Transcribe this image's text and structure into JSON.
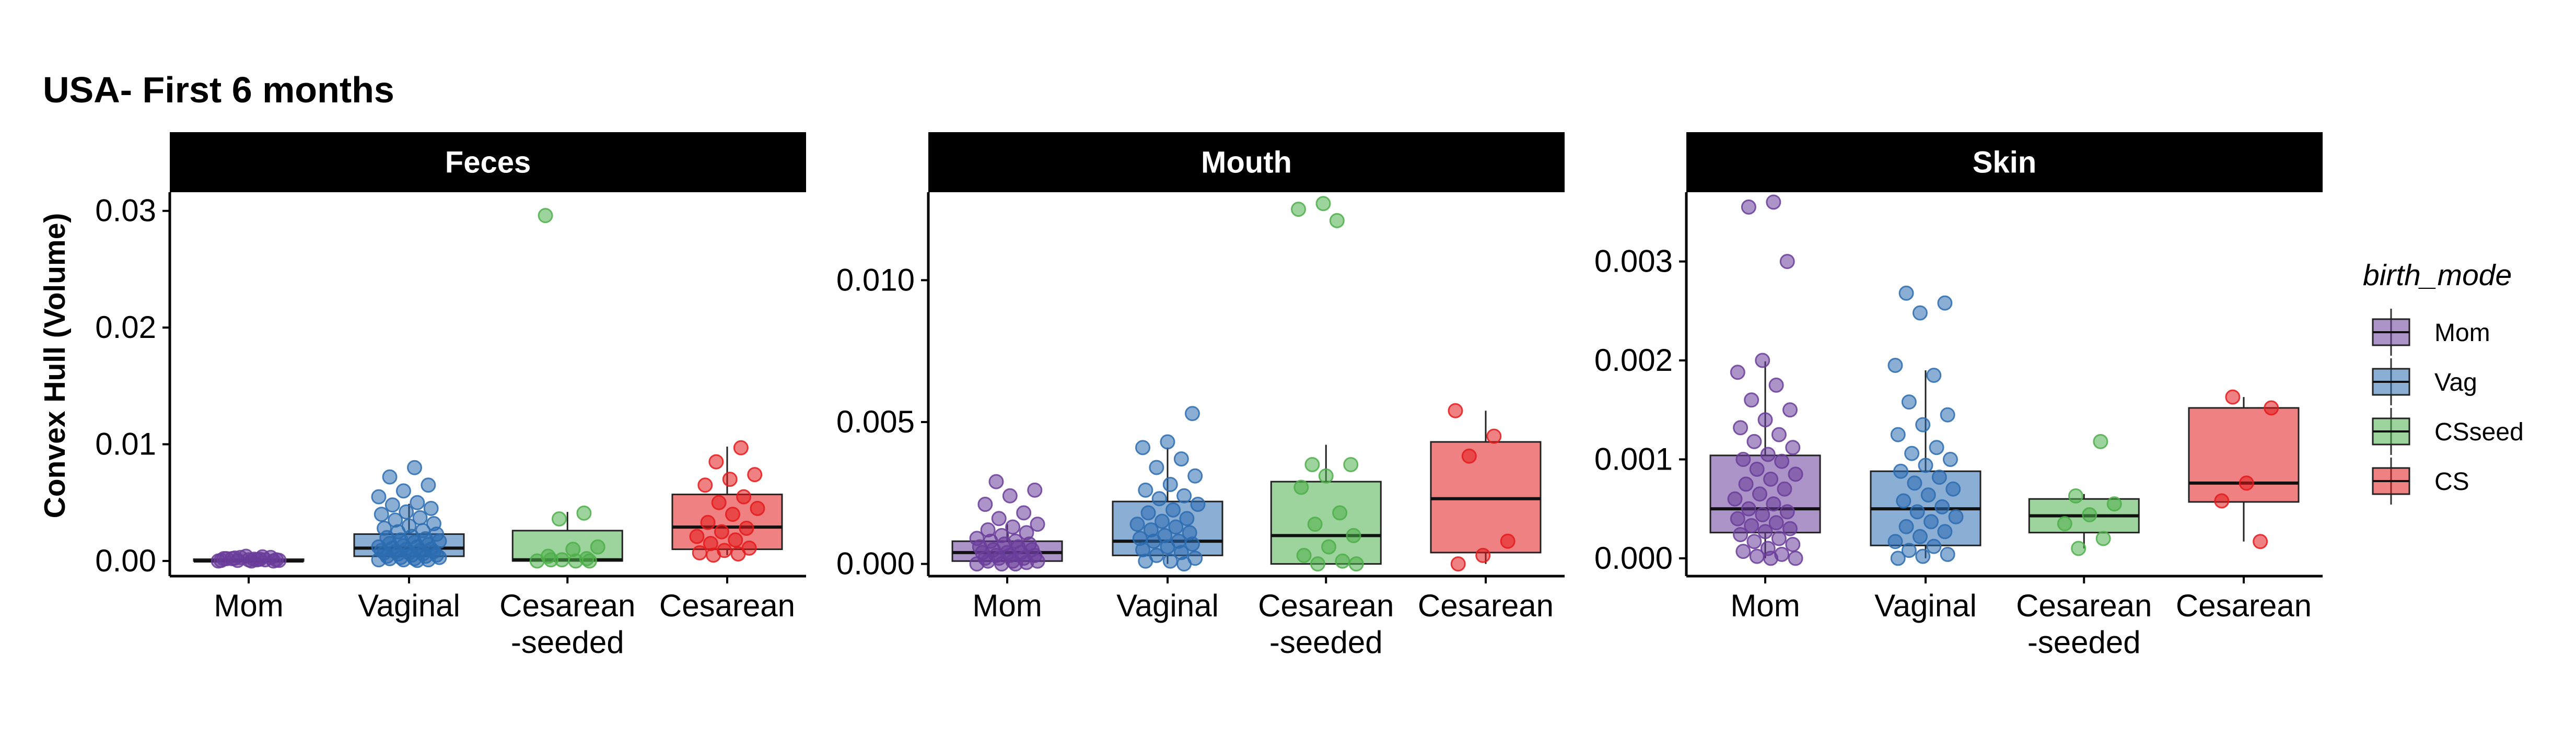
{
  "chart_data": {
    "type": "box",
    "title": "USA- First 6 months",
    "ylabel": "Convex Hull (Volume)",
    "xlabel": "",
    "categories": [
      "Mom",
      "Vaginal",
      "Cesarean\n-seeded",
      "Cesarean"
    ],
    "legend": {
      "title": "birth_mode",
      "placement": "right",
      "entries": [
        {
          "label": "Mom",
          "color": "#6a3d9a"
        },
        {
          "label": "Vag",
          "color": "#2b6cb0"
        },
        {
          "label": "CSseed",
          "color": "#4daf4a"
        },
        {
          "label": "CS",
          "color": "#e41a1c"
        }
      ]
    },
    "grid": false,
    "panels": [
      {
        "name": "Feces",
        "ylim": [
          -0.0013,
          0.0316
        ],
        "yticks": [
          0,
          0.01,
          0.02,
          0.03
        ],
        "yticklabels": [
          "0.00",
          "0.01",
          "0.02",
          "0.03"
        ],
        "series": [
          {
            "name": "Mom",
            "box": {
              "lower": -0.0003,
              "q1": 0.0,
              "median": 0.0,
              "q3": 0.00015,
              "upper": 0.0004
            },
            "points": [
              0,
              0.0001,
              0.0002,
              0.0003,
              0.0004,
              5e-05,
              0.00015,
              0.00025,
              0,
              0.0001,
              0.0002,
              0.00035,
              5e-05,
              0.0001,
              0,
              0.0002,
              0.0001,
              0.0003,
              5e-05,
              0.00015
            ]
          },
          {
            "name": "Vaginal",
            "box": {
              "lower": 0.0,
              "q1": 0.0004,
              "median": 0.0011,
              "q3": 0.0023,
              "upper": 0.0049
            },
            "points": [
              0.008,
              0.0072,
              0.0065,
              0.006,
              0.0055,
              0.005,
              0.0048,
              0.0045,
              0.0042,
              0.004,
              0.0037,
              0.0035,
              0.0032,
              0.003,
              0.0028,
              0.0026,
              0.0025,
              0.0023,
              0.0021,
              0.002,
              0.0019,
              0.0018,
              0.0017,
              0.0016,
              0.0015,
              0.0014,
              0.0013,
              0.0012,
              0.0012,
              0.0011,
              0.001,
              0.001,
              0.0009,
              0.0009,
              0.0008,
              0.0008,
              0.0007,
              0.0007,
              0.0006,
              0.0006,
              0.0005,
              0.0005,
              0.0004,
              0.0004,
              0.0003,
              0.0003,
              0.0002,
              0.0002,
              0.0001,
              0.0001,
              0.0001,
              5e-05
            ]
          },
          {
            "name": "Cesarean-seeded",
            "box": {
              "lower": 0.0,
              "q1": 0.0,
              "median": 0.0001,
              "q3": 0.0026,
              "upper": 0.0042
            },
            "points": [
              0.0296,
              0.0041,
              0.0036,
              0.0012,
              0.001,
              0.0004,
              0.0002,
              0.0001,
              0.0,
              0.0,
              0.0001,
              0.0
            ]
          },
          {
            "name": "Cesarean",
            "box": {
              "lower": 0.0005,
              "q1": 0.001,
              "median": 0.0029,
              "q3": 0.0057,
              "upper": 0.0098
            },
            "points": [
              0.0097,
              0.0085,
              0.0074,
              0.007,
              0.0065,
              0.0055,
              0.005,
              0.0045,
              0.004,
              0.0033,
              0.0028,
              0.0025,
              0.0021,
              0.0018,
              0.0015,
              0.0011,
              0.0009,
              0.0007,
              0.0006,
              0.0005
            ]
          }
        ]
      },
      {
        "name": "Mouth",
        "ylim": [
          -0.00043,
          0.0131
        ],
        "yticks": [
          0,
          0.005,
          0.01
        ],
        "yticklabels": [
          "0.000",
          "0.005",
          "0.010"
        ],
        "series": [
          {
            "name": "Mom",
            "box": {
              "lower": 0.0,
              "q1": 0.0001,
              "median": 0.0004,
              "q3": 0.0008,
              "upper": 0.0014
            },
            "points": [
              0.0029,
              0.0026,
              0.0024,
              0.0021,
              0.0018,
              0.0016,
              0.0014,
              0.0013,
              0.0012,
              0.0011,
              0.001,
              0.0009,
              0.0008,
              0.0008,
              0.0007,
              0.0007,
              0.0006,
              0.0006,
              0.0005,
              0.0005,
              0.0004,
              0.0004,
              0.0004,
              0.0003,
              0.0003,
              0.0003,
              0.0002,
              0.0002,
              0.0002,
              0.0001,
              0.0001,
              0.0001,
              5e-05,
              0.0,
              0.0,
              0.0
            ]
          },
          {
            "name": "Vaginal",
            "box": {
              "lower": 0.0,
              "q1": 0.0003,
              "median": 0.0008,
              "q3": 0.0022,
              "upper": 0.0041
            },
            "points": [
              0.0053,
              0.0043,
              0.0041,
              0.0037,
              0.0034,
              0.0031,
              0.0028,
              0.0026,
              0.0024,
              0.0023,
              0.0021,
              0.0019,
              0.0018,
              0.0016,
              0.0015,
              0.0014,
              0.0013,
              0.0012,
              0.0011,
              0.001,
              0.0009,
              0.0008,
              0.0008,
              0.0007,
              0.0006,
              0.0005,
              0.0004,
              0.0003,
              0.0002,
              0.0001,
              0.0001,
              0.0
            ]
          },
          {
            "name": "Cesarean-seeded",
            "box": {
              "lower": 0.0,
              "q1": 0.0,
              "median": 0.001,
              "q3": 0.0029,
              "upper": 0.0042
            },
            "points": [
              0.0127,
              0.0125,
              0.0121,
              0.0035,
              0.0035,
              0.0031,
              0.0027,
              0.0018,
              0.0014,
              0.001,
              0.0006,
              0.0003,
              0.0001,
              0.0,
              0.0
            ]
          },
          {
            "name": "Cesarean",
            "box": {
              "lower": 0.0,
              "q1": 0.0004,
              "median": 0.0023,
              "q3": 0.0043,
              "upper": 0.0054
            },
            "points": [
              0.0054,
              0.0045,
              0.0038,
              0.0008,
              0.0003,
              0.0
            ]
          }
        ]
      },
      {
        "name": "Skin",
        "ylim": [
          -0.00018,
          0.0037
        ],
        "yticks": [
          0,
          0.001,
          0.002,
          0.003
        ],
        "yticklabels": [
          "0.000",
          "0.001",
          "0.002",
          "0.003"
        ],
        "series": [
          {
            "name": "Mom",
            "box": {
              "lower": 0.0,
              "q1": 0.00026,
              "median": 0.0005,
              "q3": 0.00104,
              "upper": 0.00199
            },
            "points": [
              0.0036,
              0.00355,
              0.003,
              0.002,
              0.00188,
              0.00175,
              0.0016,
              0.0015,
              0.0014,
              0.00132,
              0.00125,
              0.00118,
              0.00112,
              0.00105,
              0.001,
              0.00098,
              0.0009,
              0.00085,
              0.0008,
              0.00075,
              0.0007,
              0.00065,
              0.0006,
              0.00055,
              0.0005,
              0.00047,
              0.00044,
              0.0004,
              0.00036,
              0.00033,
              0.0003,
              0.00027,
              0.00024,
              0.0002,
              0.00017,
              0.00014,
              0.0001,
              7e-05,
              4e-05,
              2e-05,
              0.0,
              0.0
            ]
          },
          {
            "name": "Vaginal",
            "box": {
              "lower": 0.0,
              "q1": 0.00013,
              "median": 0.0005,
              "q3": 0.00088,
              "upper": 0.0019
            },
            "points": [
              0.00268,
              0.00258,
              0.00248,
              0.00195,
              0.00185,
              0.00158,
              0.00145,
              0.00135,
              0.00125,
              0.00112,
              0.00106,
              0.001,
              0.00094,
              0.00088,
              0.00082,
              0.00076,
              0.0007,
              0.00064,
              0.00058,
              0.00052,
              0.00047,
              0.00042,
              0.00037,
              0.00032,
              0.00027,
              0.00022,
              0.00017,
              0.00012,
              8e-05,
              4e-05,
              2e-05,
              0.0
            ]
          },
          {
            "name": "Cesarean-seeded",
            "box": {
              "lower": 0.0001,
              "q1": 0.00026,
              "median": 0.00043,
              "q3": 0.0006,
              "upper": 0.00065
            },
            "points": [
              0.00118,
              0.00063,
              0.00055,
              0.00044,
              0.00035,
              0.0002,
              0.0001
            ]
          },
          {
            "name": "Cesarean",
            "box": {
              "lower": 0.00017,
              "q1": 0.00057,
              "median": 0.00076,
              "q3": 0.00152,
              "upper": 0.00163
            },
            "points": [
              0.00163,
              0.00152,
              0.00076,
              0.00058,
              0.00017
            ]
          }
        ]
      }
    ]
  }
}
